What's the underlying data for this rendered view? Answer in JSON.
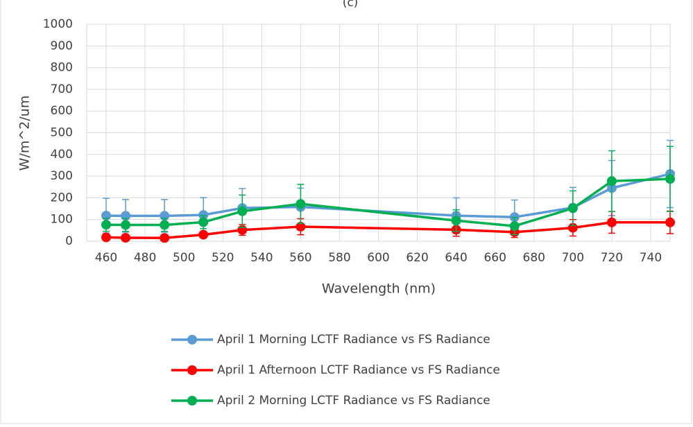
{
  "chart_data": {
    "type": "line",
    "title": "(c)",
    "x_label": "Wavelength (nm)",
    "y_label": "W/m^2/um",
    "x": [
      460,
      470,
      490,
      510,
      530,
      560,
      640,
      670,
      700,
      720,
      750
    ],
    "series": [
      {
        "name": "April 1 Morning LCTF Radiance vs FS Radiance",
        "color": "#5b9bd5",
        "values": [
          118,
          117,
          117,
          121,
          153,
          158,
          118,
          111,
          155,
          245,
          310
        ],
        "errors": [
          80,
          75,
          75,
          80,
          90,
          87,
          82,
          79,
          93,
          127,
          155
        ]
      },
      {
        "name": "April 1 Afternoon LCTF Radiance vs FS Radiance",
        "color": "#ff0000",
        "values": [
          18,
          16,
          15,
          30,
          52,
          67,
          53,
          42,
          62,
          87,
          87
        ],
        "errors": [
          10,
          8,
          8,
          10,
          25,
          37,
          30,
          25,
          38,
          50,
          52
        ]
      },
      {
        "name": "April 2 Morning LCTF Radiance vs FS Radiance",
        "color": "#00b050",
        "values": [
          76,
          75,
          75,
          88,
          138,
          172,
          95,
          70,
          152,
          277,
          287
        ],
        "errors": [
          30,
          30,
          30,
          30,
          75,
          90,
          50,
          40,
          80,
          140,
          150
        ]
      }
    ],
    "xlim": [
      450,
      750
    ],
    "xticks": [
      460,
      480,
      500,
      520,
      540,
      560,
      580,
      600,
      620,
      640,
      660,
      680,
      700,
      720,
      740
    ],
    "ylim": [
      0,
      1000
    ],
    "yticks": [
      0,
      100,
      200,
      300,
      400,
      500,
      600,
      700,
      800,
      900,
      1000
    ],
    "grid": true,
    "legend": "bottom"
  }
}
